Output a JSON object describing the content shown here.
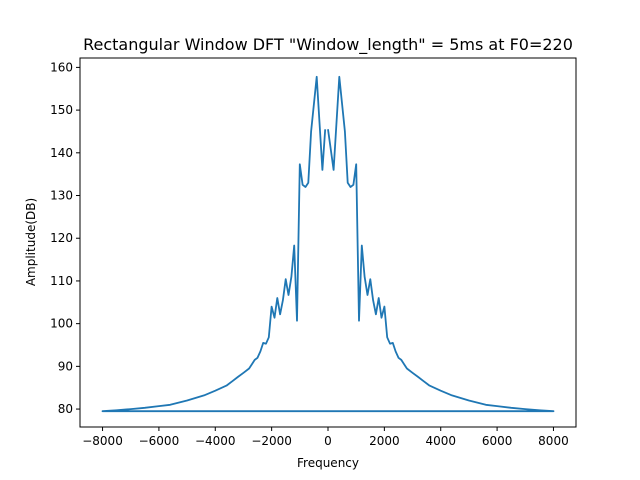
{
  "chart_data": {
    "type": "line",
    "title": "Rectangular Window DFT \"Window_length\" = 5ms at F0=220",
    "xlabel": "Frequency",
    "ylabel": "Amplitude(DB)",
    "xlim": [
      -8800,
      8800
    ],
    "ylim": [
      75.8,
      162.2
    ],
    "xticks": [
      -8000,
      -6000,
      -4000,
      -2000,
      0,
      2000,
      4000,
      6000,
      8000
    ],
    "xtick_labels": [
      "−8000",
      "−6000",
      "−4000",
      "−2000",
      "0",
      "2000",
      "4000",
      "6000",
      "8000"
    ],
    "yticks": [
      80,
      90,
      100,
      110,
      120,
      130,
      140,
      150,
      160
    ],
    "ytick_labels": [
      "80",
      "90",
      "100",
      "110",
      "120",
      "130",
      "140",
      "150",
      "160"
    ],
    "grid": false,
    "series": [
      {
        "color": "#1f77b4",
        "x": [
          0,
          200,
          400,
          600,
          700,
          800,
          900,
          1000,
          1100,
          1200,
          1300,
          1400,
          1500,
          1600,
          1700,
          1800,
          1900,
          2000,
          2100,
          2200,
          2300,
          2400,
          2500,
          2600,
          2700,
          2800,
          3000,
          3200,
          3400,
          3600,
          4000,
          4400,
          5000,
          5600,
          6000,
          6500,
          7000,
          7500,
          8000,
          7900,
          -8000,
          -7500,
          -7000,
          -6500,
          -6000,
          -5600,
          -5000,
          -4400,
          -4000,
          -3600,
          -3400,
          -3200,
          -3000,
          -2800,
          -2700,
          -2600,
          -2500,
          -2400,
          -2300,
          -2200,
          -2100,
          -2000,
          -1900,
          -1800,
          -1700,
          -1600,
          -1500,
          -1400,
          -1300,
          -1200,
          -1100,
          -1000,
          -900,
          -800,
          -700,
          -600,
          -400,
          -200,
          -100
        ],
        "y": [
          145.5,
          136,
          157.8,
          145,
          133,
          132,
          132.5,
          137.3,
          100.7,
          118.3,
          111,
          106.7,
          110.4,
          105.5,
          102.2,
          106,
          101.4,
          104,
          96.8,
          95.3,
          95.5,
          93.5,
          92,
          91.5,
          90.5,
          89.5,
          88.5,
          87.5,
          86.5,
          85.5,
          84.3,
          83.2,
          82,
          81,
          80.7,
          80.3,
          80,
          79.7,
          79.5,
          79.5,
          79.5,
          79.7,
          80,
          80.3,
          80.7,
          81,
          82,
          83.2,
          84.3,
          85.5,
          86.5,
          87.5,
          88.5,
          89.5,
          90.5,
          91.5,
          92,
          93.5,
          95.5,
          95.3,
          96.8,
          104,
          101.4,
          106,
          102.2,
          105.5,
          110.4,
          106.7,
          111,
          118.3,
          100.7,
          137.3,
          132.5,
          132,
          133,
          145,
          157.8,
          136,
          145.5
        ]
      }
    ]
  }
}
